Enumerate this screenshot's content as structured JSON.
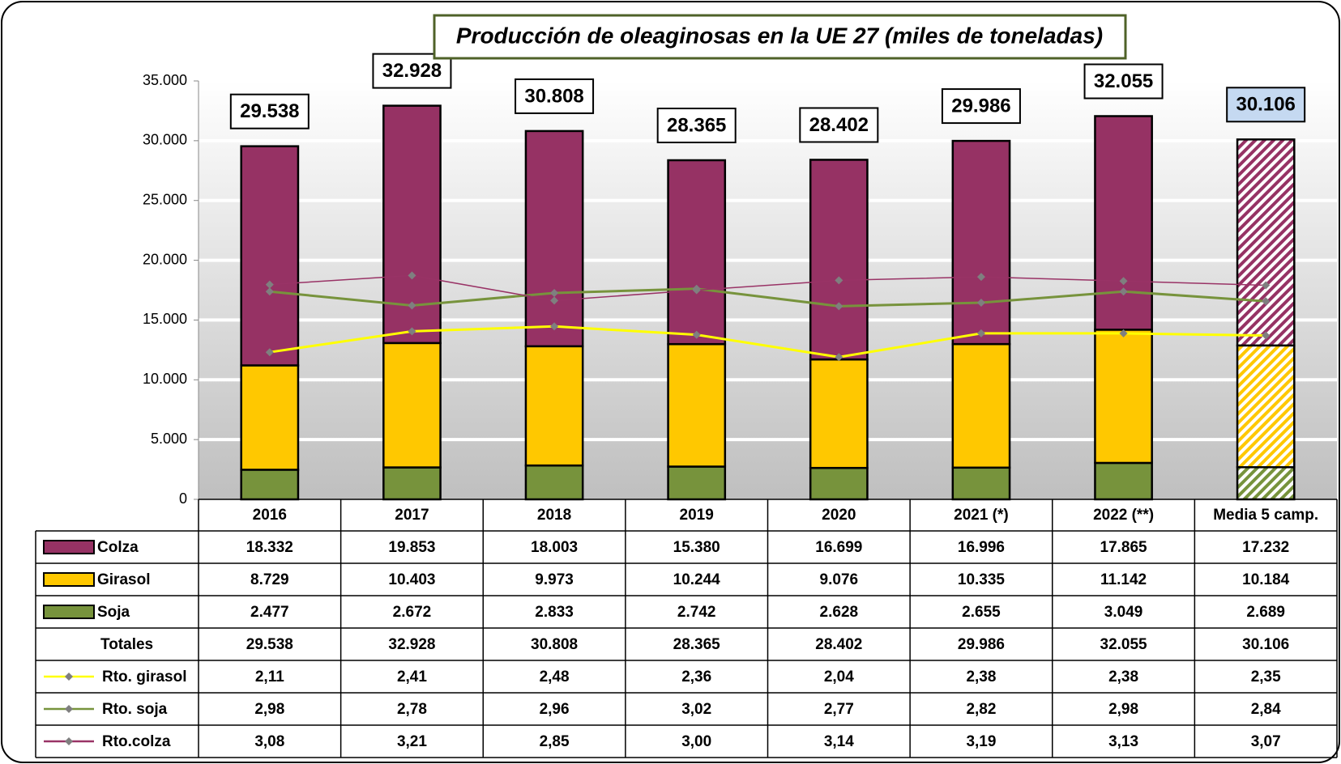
{
  "chart_data": {
    "type": "bar",
    "title": "Producción de oleaginosas en la UE 27 (miles de toneladas)",
    "categories": [
      "2016",
      "2017",
      "2018",
      "2019",
      "2020",
      "2021 (*)",
      "2022 (**)",
      "Media 5 camp."
    ],
    "stacked": true,
    "series": [
      {
        "name": "Colza",
        "type": "bar",
        "color": "#963264",
        "values": [
          18332,
          19853,
          18003,
          15380,
          16699,
          16996,
          17865,
          17232
        ],
        "value_labels": [
          "18.332",
          "19.853",
          "18.003",
          "15.380",
          "16.699",
          "16.996",
          "17.865",
          "17.232"
        ]
      },
      {
        "name": "Girasol",
        "type": "bar",
        "color": "#FFC800",
        "values": [
          8729,
          10403,
          9973,
          10244,
          9076,
          10335,
          11142,
          10184
        ],
        "value_labels": [
          "8.729",
          "10.403",
          "9.973",
          "10.244",
          "9.076",
          "10.335",
          "11.142",
          "10.184"
        ]
      },
      {
        "name": "Soja",
        "type": "bar",
        "color": "#77933C",
        "values": [
          2477,
          2672,
          2833,
          2742,
          2628,
          2655,
          3049,
          2689
        ],
        "value_labels": [
          "2.477",
          "2.672",
          "2.833",
          "2.742",
          "2.628",
          "2.655",
          "3.049",
          "2.689"
        ]
      },
      {
        "name": "Rto. girasol",
        "type": "line",
        "axis": "y2",
        "color": "#FFFF00",
        "values": [
          2.11,
          2.41,
          2.48,
          2.36,
          2.04,
          2.38,
          2.38,
          2.35
        ],
        "value_labels": [
          "2,11",
          "2,41",
          "2,48",
          "2,36",
          "2,04",
          "2,38",
          "2,38",
          "2,35"
        ]
      },
      {
        "name": "Rto. soja",
        "type": "line",
        "axis": "y2",
        "color": "#77933C",
        "values": [
          2.98,
          2.78,
          2.96,
          3.02,
          2.77,
          2.82,
          2.98,
          2.84
        ],
        "value_labels": [
          "2,98",
          "2,78",
          "2,96",
          "3,02",
          "2,77",
          "2,82",
          "2,98",
          "2,84"
        ]
      },
      {
        "name": "Rto.colza",
        "type": "line",
        "axis": "y2",
        "color": "#993366",
        "values": [
          3.08,
          3.21,
          2.85,
          3.0,
          3.14,
          3.19,
          3.13,
          3.07
        ],
        "value_labels": [
          "3,08",
          "3,21",
          "2,85",
          "3,00",
          "3,14",
          "3,19",
          "3,13",
          "3,07"
        ]
      }
    ],
    "totals": {
      "name": "Totales",
      "values": [
        29538,
        32928,
        30808,
        28365,
        28402,
        29986,
        32055,
        30106
      ],
      "value_labels": [
        "29.538",
        "32.928",
        "30.808",
        "28.365",
        "28.402",
        "29.986",
        "32.055",
        "30.106"
      ]
    },
    "ylim": [
      0,
      35000
    ],
    "yticks": [
      0,
      {
        "value": 5000,
        "label": "5.000"
      },
      {
        "value": 10000,
        "label": "10.000"
      },
      {
        "value": 15000,
        "label": "15.000"
      },
      {
        "value": 20000,
        "label": "20.000"
      },
      {
        "value": 25000,
        "label": "25.000"
      },
      {
        "value": 30000,
        "label": "30.000"
      },
      {
        "value": 35000,
        "label": "35.000"
      }
    ],
    "y2lim": [
      0,
      6
    ],
    "grid": true
  }
}
